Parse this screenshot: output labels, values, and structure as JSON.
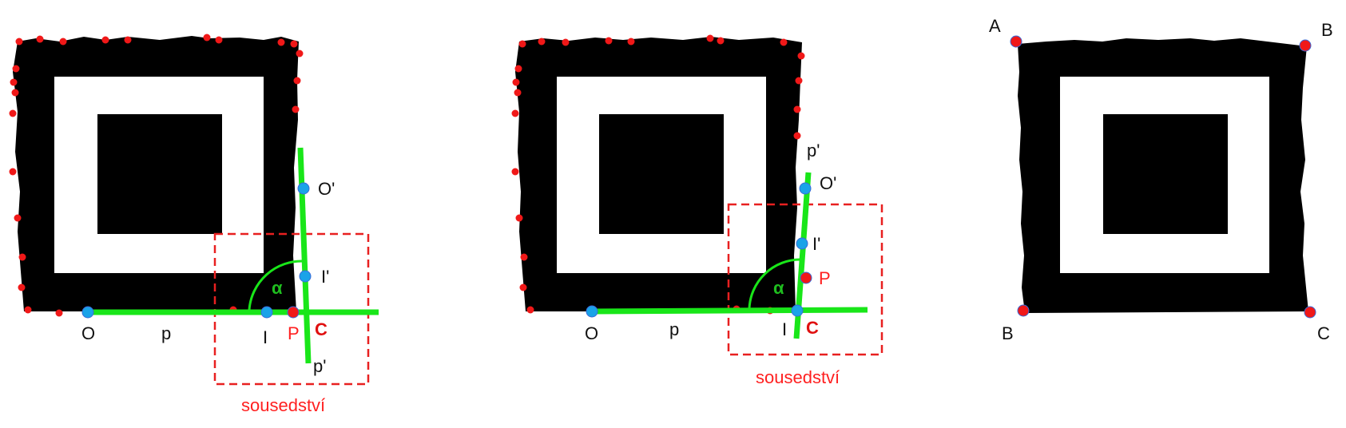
{
  "colors": {
    "marker_shape": "#000000",
    "background": "#ffffff",
    "line_green": "#19e619",
    "point_blue": "#1aa3e8",
    "point_red": "#f01818",
    "neighborhood_border": "#e82020",
    "label_red": "#ff2020"
  },
  "panel1": {
    "labels": {
      "O": "O",
      "O_prime": "O'",
      "I": "I",
      "I_prime": "I'",
      "P": "P",
      "C": "C",
      "p": "p",
      "p_prime": "p'",
      "alpha": "α",
      "neighborhood": "sousedství"
    }
  },
  "panel2": {
    "labels": {
      "O": "O",
      "O_prime": "O'",
      "I": "I",
      "I_prime": "I'",
      "P": "P",
      "C": "C",
      "p": "p",
      "p_prime": "p'",
      "alpha": "α",
      "neighborhood": "sousedství"
    }
  },
  "panel3": {
    "labels": {
      "A": "A",
      "B_top": "B",
      "B_bottom": "B",
      "C": "C"
    }
  }
}
